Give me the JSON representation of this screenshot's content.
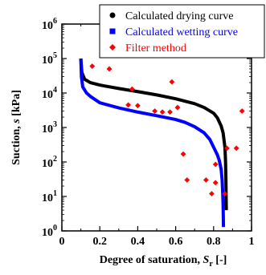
{
  "chart_data": {
    "type": "scatter",
    "xlabel": "Degree of saturation, S",
    "xlabel_sub": "r",
    "xlabel_unit": " [-]",
    "ylabel": "Suction, s [kPa]",
    "ylabel_italic_char": "s",
    "x_range": [
      0,
      1
    ],
    "y_range": [
      1,
      1000000
    ],
    "y_scale": "log",
    "x_ticks": [
      {
        "v": 0,
        "label": "0"
      },
      {
        "v": 0.2,
        "label": "0.2"
      },
      {
        "v": 0.4,
        "label": "0.4"
      },
      {
        "v": 0.6,
        "label": "0.6"
      },
      {
        "v": 0.8,
        "label": "0.8"
      },
      {
        "v": 1.0,
        "label": "1"
      }
    ],
    "y_ticks": [
      {
        "v": 1,
        "exp": "0"
      },
      {
        "v": 10,
        "exp": "1"
      },
      {
        "v": 100,
        "exp": "2"
      },
      {
        "v": 1000,
        "exp": "3"
      },
      {
        "v": 10000,
        "exp": "4"
      },
      {
        "v": 100000,
        "exp": "5"
      },
      {
        "v": 1000000,
        "exp": "6"
      }
    ],
    "legend_position": "top-right",
    "series": [
      {
        "name": "Calculated drying curve",
        "kind": "line",
        "color": "#000000",
        "points": [
          [
            0.1,
            100000
          ],
          [
            0.105,
            40000
          ],
          [
            0.12,
            25000
          ],
          [
            0.15,
            20000
          ],
          [
            0.2,
            17000
          ],
          [
            0.3,
            13500
          ],
          [
            0.4,
            11000
          ],
          [
            0.5,
            8800
          ],
          [
            0.6,
            6800
          ],
          [
            0.7,
            4900
          ],
          [
            0.75,
            3800
          ],
          [
            0.8,
            2600
          ],
          [
            0.82,
            1900
          ],
          [
            0.84,
            1100
          ],
          [
            0.85,
            700
          ],
          [
            0.86,
            260
          ],
          [
            0.863,
            100
          ],
          [
            0.865,
            30
          ],
          [
            0.866,
            10
          ],
          [
            0.867,
            4
          ]
        ]
      },
      {
        "name": "Calculated wetting curve",
        "kind": "line",
        "color": "#0000ff",
        "points": [
          [
            0.1,
            100000
          ],
          [
            0.103,
            30000
          ],
          [
            0.11,
            15000
          ],
          [
            0.13,
            10000
          ],
          [
            0.15,
            8000
          ],
          [
            0.2,
            5200
          ],
          [
            0.3,
            3700
          ],
          [
            0.4,
            2800
          ],
          [
            0.5,
            2200
          ],
          [
            0.6,
            1700
          ],
          [
            0.65,
            1400
          ],
          [
            0.7,
            1050
          ],
          [
            0.75,
            700
          ],
          [
            0.78,
            450
          ],
          [
            0.8,
            270
          ],
          [
            0.82,
            160
          ],
          [
            0.83,
            110
          ],
          [
            0.84,
            60
          ],
          [
            0.845,
            30
          ],
          [
            0.848,
            13
          ],
          [
            0.85,
            6
          ],
          [
            0.851,
            3
          ],
          [
            0.852,
            1.3
          ]
        ]
      },
      {
        "name": "Filter method",
        "kind": "scatter",
        "color": "#ff0000",
        "points": [
          [
            0.16,
            60000
          ],
          [
            0.25,
            50000
          ],
          [
            0.35,
            4500
          ],
          [
            0.4,
            4300
          ],
          [
            0.37,
            13000
          ],
          [
            0.49,
            3000
          ],
          [
            0.53,
            2800
          ],
          [
            0.57,
            2800
          ],
          [
            0.61,
            3800
          ],
          [
            0.58,
            21000
          ],
          [
            0.64,
            170
          ],
          [
            0.66,
            30
          ],
          [
            0.76,
            30
          ],
          [
            0.79,
            12
          ],
          [
            0.81,
            25
          ],
          [
            0.81,
            85
          ],
          [
            0.86,
            12
          ],
          [
            0.87,
            250
          ],
          [
            0.92,
            250
          ],
          [
            0.95,
            3000
          ]
        ]
      }
    ]
  }
}
